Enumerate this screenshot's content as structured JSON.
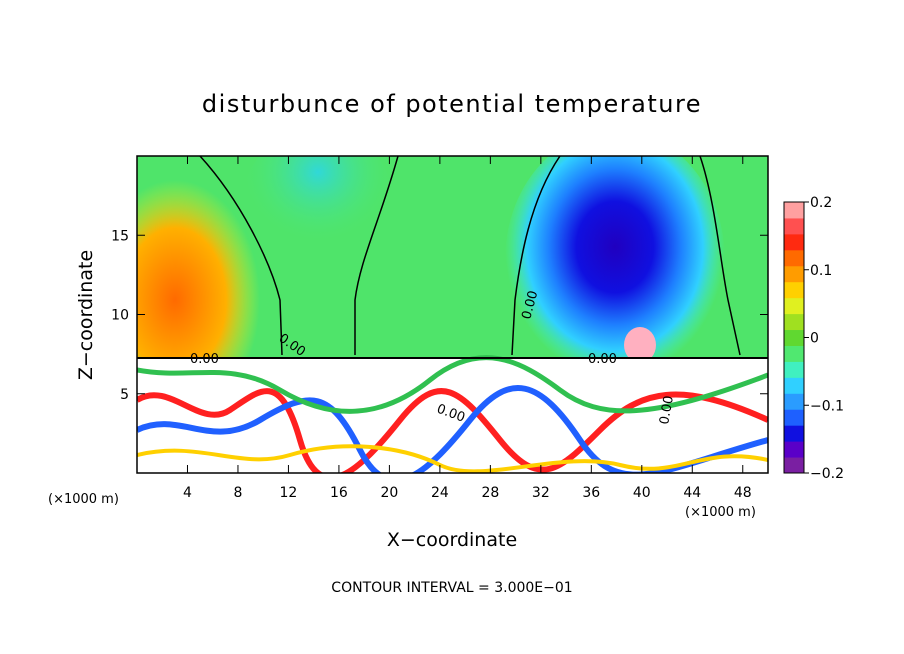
{
  "chart_data": {
    "type": "heatmap",
    "title": "disturbunce of potential temperature",
    "xlabel": "X−coordinate",
    "ylabel": "Z−coordinate",
    "x_unit_left": "(×1000 m)",
    "x_unit_right": "(×1000 m)",
    "xlim": [
      0,
      50
    ],
    "ylim": [
      0,
      20
    ],
    "x_ticks": [
      "4",
      "8",
      "12",
      "16",
      "20",
      "24",
      "28",
      "32",
      "36",
      "40",
      "44",
      "48"
    ],
    "y_ticks": [
      "5",
      "10",
      "15"
    ],
    "x_tick_values": [
      4,
      8,
      12,
      16,
      20,
      24,
      28,
      32,
      36,
      40,
      44,
      48
    ],
    "y_tick_values": [
      5,
      10,
      15
    ],
    "colorbar": {
      "min": -0.2,
      "max": 0.2,
      "tick_labels": [
        "0.2",
        "0.1",
        "0",
        "−0.1",
        "−0.2"
      ],
      "tick_values": [
        0.2,
        0.1,
        0,
        -0.1,
        -0.2
      ],
      "colors": [
        "#7a1fa2",
        "#5a00c8",
        "#1010e0",
        "#1e60ff",
        "#2a9cff",
        "#30d0ff",
        "#40f0c0",
        "#50e870",
        "#60d830",
        "#a0e020",
        "#e0f020",
        "#ffd000",
        "#ff9c00",
        "#ff6a00",
        "#ff2a10",
        "#ff5050",
        "#ffa0a0"
      ]
    },
    "contour_labels": [
      "0.00",
      "0.00",
      "0.00",
      "0.00",
      "0.00",
      "0.00"
    ],
    "contour_interval_text": "CONTOUR INTERVAL = 3.000E−01",
    "interface_height": 7.3,
    "upper_layer_fields": [
      {
        "region": "x 0–11",
        "value": 0.08
      },
      {
        "region": "x 11–18",
        "value": -0.06
      },
      {
        "region": "x 18–31",
        "value": 0.02
      },
      {
        "region": "x 31–44",
        "value": -0.17
      },
      {
        "region": "x 44–50",
        "value": 0.03
      }
    ]
  }
}
